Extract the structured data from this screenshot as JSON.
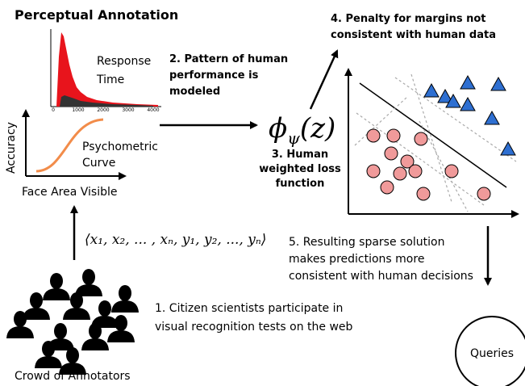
{
  "header": {
    "title": "Perceptual Annotation"
  },
  "response_time": {
    "label_lines": [
      "Response",
      "Time"
    ],
    "x_ticks": [
      "0",
      "1000",
      "2000",
      "3000",
      "4000"
    ]
  },
  "psychometric": {
    "label_lines": [
      "Psychometric",
      "Curve"
    ],
    "y_axis_label": "Accuracy",
    "x_axis_label": "Face Area Visible"
  },
  "steps": [
    {
      "lines": [
        "1. Citizen scientists participate in",
        "visual recognition tests on the web"
      ]
    },
    {
      "lines": [
        "2. Pattern of human",
        "performance is",
        "modeled"
      ]
    },
    {
      "lines": [
        "3. Human",
        "weighted loss",
        "function"
      ]
    },
    {
      "lines": [
        "4. Penalty for margins not",
        "consistent with human data"
      ]
    },
    {
      "lines": [
        "5. Resulting sparse solution",
        "makes predictions more",
        "consistent with human decisions"
      ]
    }
  ],
  "formula": {
    "symbol": "ϕ",
    "subscript": "ψ",
    "argument": "(z)"
  },
  "tuple": "⟨x₁, x₂, ... , xₙ, y₁, y₂, ..., yₙ⟩",
  "queries": "Queries",
  "crowd_label": "Crowd of Annotators"
}
